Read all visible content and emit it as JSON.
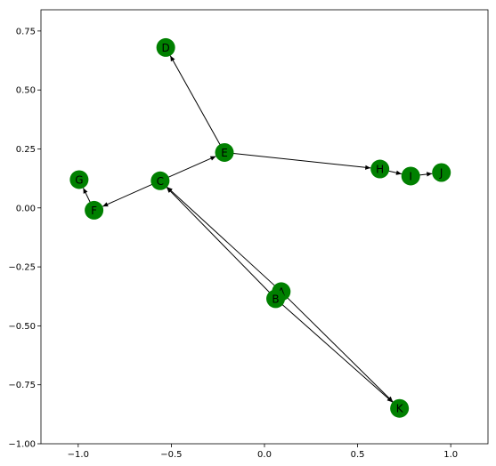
{
  "chart_data": {
    "type": "network-graph",
    "xlim": [
      -1.2,
      1.2
    ],
    "ylim": [
      -1.0,
      0.84
    ],
    "x_ticks": [
      {
        "value": -1.0,
        "label": "−1.0"
      },
      {
        "value": -0.5,
        "label": "−0.5"
      },
      {
        "value": 0.0,
        "label": "0.0"
      },
      {
        "value": 0.5,
        "label": "0.5"
      },
      {
        "value": 1.0,
        "label": "1.0"
      }
    ],
    "y_ticks": [
      {
        "value": 0.75,
        "label": "0.75"
      },
      {
        "value": 0.5,
        "label": "0.50"
      },
      {
        "value": 0.25,
        "label": "0.25"
      },
      {
        "value": 0.0,
        "label": "0.00"
      },
      {
        "value": -0.25,
        "label": "−0.25"
      },
      {
        "value": -0.5,
        "label": "−0.50"
      },
      {
        "value": -0.75,
        "label": "−0.75"
      },
      {
        "value": -1.0,
        "label": "−1.00"
      }
    ],
    "node_color": "#008000",
    "edge_color": "#000000",
    "nodes": [
      {
        "id": "A",
        "x": 0.09,
        "y": -0.355
      },
      {
        "id": "B",
        "x": 0.06,
        "y": -0.385
      },
      {
        "id": "C",
        "x": -0.56,
        "y": 0.115
      },
      {
        "id": "D",
        "x": -0.53,
        "y": 0.68
      },
      {
        "id": "E",
        "x": -0.215,
        "y": 0.235
      },
      {
        "id": "F",
        "x": -0.915,
        "y": -0.01
      },
      {
        "id": "G",
        "x": -0.995,
        "y": 0.12
      },
      {
        "id": "H",
        "x": 0.62,
        "y": 0.165
      },
      {
        "id": "I",
        "x": 0.785,
        "y": 0.135
      },
      {
        "id": "J",
        "x": 0.95,
        "y": 0.15
      },
      {
        "id": "K",
        "x": 0.725,
        "y": -0.85
      }
    ],
    "edges": [
      {
        "source": "A",
        "target": "C"
      },
      {
        "source": "A",
        "target": "K"
      },
      {
        "source": "B",
        "target": "C"
      },
      {
        "source": "B",
        "target": "K"
      },
      {
        "source": "C",
        "target": "E"
      },
      {
        "source": "C",
        "target": "F"
      },
      {
        "source": "E",
        "target": "D"
      },
      {
        "source": "E",
        "target": "H"
      },
      {
        "source": "F",
        "target": "G"
      },
      {
        "source": "H",
        "target": "I"
      },
      {
        "source": "I",
        "target": "J"
      }
    ]
  }
}
